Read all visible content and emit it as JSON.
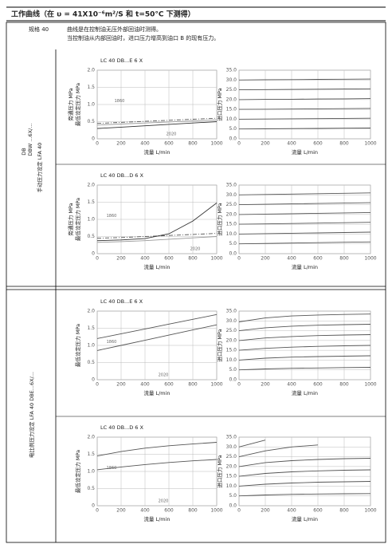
{
  "header": {
    "title": "工作曲线（在 υ = 41X10⁻⁶m²/S 和 t=50°C 下测得）",
    "spec": "规格 40",
    "notes": [
      "曲线是在控制油无压外部回油时测得。",
      "当控制油从内部回油时，进口压力增高到油口 B 的现有压力。"
    ]
  },
  "sections": [
    {
      "side_labels": [
        "手动压力设定 LFA 40",
        "DB",
        "DBW ...6X/..."
      ]
    },
    {
      "side_labels": [
        "电比例压力设定 LFA 40 DBE...6X/..."
      ]
    }
  ],
  "chart_data": [
    {
      "type": "line",
      "title": "LC 40 DB...E 6 X",
      "ylabels": [
        "旁通压力 MPa",
        "最低设定压力 MPa"
      ],
      "xlabel": "流量 L/min",
      "annotations": [
        "1860",
        "2020"
      ],
      "grid": true,
      "x": [
        0,
        200,
        400,
        600,
        800,
        1000
      ],
      "xlim": [
        0,
        1000
      ],
      "xticks": [
        0,
        200,
        400,
        600,
        800,
        1000
      ],
      "ylim": [
        0,
        2
      ],
      "yticks": [
        0,
        0.5,
        {
          "value": 1,
          "label": "1.0"
        },
        1.5,
        {
          "value": 2,
          "label": "2.0"
        }
      ],
      "series": [
        {
          "color": "#555",
          "style": "dashdot",
          "values": [
            0.45,
            0.48,
            0.51,
            0.54,
            0.57,
            0.6
          ]
        },
        {
          "color": "#999",
          "style": "solid",
          "values": [
            0.4,
            0.43,
            0.46,
            0.49,
            0.52,
            0.55
          ]
        },
        {
          "color": "#333",
          "style": "solid",
          "values": [
            0.3,
            0.34,
            0.38,
            0.42,
            0.46,
            0.5
          ]
        }
      ]
    },
    {
      "type": "line",
      "ylabels": [
        "进口压力 MPa"
      ],
      "xlabel": "流量 L/min",
      "grid": true,
      "x": [
        0,
        200,
        400,
        600,
        800,
        1000
      ],
      "xlim": [
        0,
        1000
      ],
      "xticks": [
        0,
        200,
        400,
        600,
        800,
        1000
      ],
      "ylim": [
        0,
        35
      ],
      "yticks": [
        {
          "value": 0,
          "label": "0.0"
        },
        {
          "value": 5,
          "label": "5.0"
        },
        {
          "value": 10,
          "label": "10.0"
        },
        {
          "value": 15,
          "label": "15.0"
        },
        {
          "value": 20,
          "label": "20.0"
        },
        {
          "value": 25,
          "label": "25.0"
        },
        {
          "value": 30,
          "label": "30.0"
        },
        {
          "value": 35,
          "label": "35.0"
        }
      ],
      "series": [
        {
          "color": "#555",
          "style": "solid",
          "values": [
            5,
            5.1,
            5.2,
            5.3,
            5.4,
            5.5
          ]
        },
        {
          "color": "#555",
          "style": "solid",
          "values": [
            10,
            10.1,
            10.2,
            10.3,
            10.4,
            10.5
          ]
        },
        {
          "color": "#555",
          "style": "solid",
          "values": [
            15,
            15.1,
            15.2,
            15.3,
            15.4,
            15.5
          ]
        },
        {
          "color": "#555",
          "style": "solid",
          "values": [
            20,
            20.1,
            20.2,
            20.3,
            20.4,
            20.5
          ]
        },
        {
          "color": "#555",
          "style": "solid",
          "values": [
            25,
            25.1,
            25.2,
            25.3,
            25.4,
            25.5
          ]
        },
        {
          "color": "#555",
          "style": "solid",
          "values": [
            30,
            30.1,
            30.2,
            30.3,
            30.4,
            30.5
          ]
        }
      ]
    },
    {
      "type": "line",
      "title": "LC 40 DB...D 6 X",
      "ylabels": [
        "旁通压力 MPa",
        "最低设定压力 MPa"
      ],
      "xlabel": "流量 L/min",
      "annotations": [
        "1860",
        "2020"
      ],
      "grid": true,
      "x": [
        0,
        200,
        400,
        600,
        800,
        1000
      ],
      "xlim": [
        0,
        1000
      ],
      "xticks": [
        0,
        200,
        400,
        600,
        800,
        1000
      ],
      "ylim": [
        0,
        2
      ],
      "yticks": [
        0,
        0.5,
        {
          "value": 1,
          "label": "1.0"
        },
        1.5,
        {
          "value": 2,
          "label": "2.0"
        }
      ],
      "series": [
        {
          "color": "#555",
          "style": "dashdot",
          "values": [
            0.45,
            0.47,
            0.5,
            0.53,
            0.56,
            0.59
          ]
        },
        {
          "color": "#333",
          "style": "solid",
          "values": [
            0.38,
            0.4,
            0.44,
            0.58,
            0.95,
            1.48
          ]
        },
        {
          "color": "#999",
          "style": "solid",
          "values": [
            0.33,
            0.35,
            0.38,
            0.42,
            0.46,
            0.5
          ]
        }
      ]
    },
    {
      "type": "line",
      "ylabels": [
        "进口压力 MPa"
      ],
      "xlabel": "流量 L/min",
      "grid": true,
      "x": [
        0,
        200,
        400,
        600,
        800,
        1000
      ],
      "xlim": [
        0,
        1000
      ],
      "xticks": [
        0,
        200,
        400,
        600,
        800,
        1000
      ],
      "ylim": [
        0,
        35
      ],
      "yticks": [
        {
          "value": 0,
          "label": "0.0"
        },
        {
          "value": 5,
          "label": "5.0"
        },
        {
          "value": 10,
          "label": "10.0"
        },
        {
          "value": 15,
          "label": "15.0"
        },
        {
          "value": 20,
          "label": "20.0"
        },
        {
          "value": 25,
          "label": "25.0"
        },
        {
          "value": 30,
          "label": "30.0"
        },
        {
          "value": 35,
          "label": "35.0"
        }
      ],
      "series": [
        {
          "color": "#555",
          "style": "solid",
          "values": [
            5,
            5.2,
            5.4,
            5.6,
            5.8,
            6
          ]
        },
        {
          "color": "#555",
          "style": "solid",
          "values": [
            10,
            10.2,
            10.4,
            10.6,
            10.8,
            11
          ]
        },
        {
          "color": "#555",
          "style": "solid",
          "values": [
            15,
            15.2,
            15.4,
            15.6,
            15.8,
            16
          ]
        },
        {
          "color": "#555",
          "style": "solid",
          "values": [
            20,
            20.2,
            20.4,
            20.6,
            20.8,
            21
          ]
        },
        {
          "color": "#555",
          "style": "solid",
          "values": [
            25,
            25.2,
            25.4,
            25.6,
            25.8,
            26
          ]
        },
        {
          "color": "#555",
          "style": "solid",
          "values": [
            30,
            30.2,
            30.4,
            30.6,
            30.8,
            31
          ]
        }
      ]
    },
    {
      "type": "line",
      "title": "LC 40 DB...E 6 X",
      "ylabels": [
        "最低设定压力 MPa"
      ],
      "xlabel": "流量 L/min",
      "annotations": [
        "1860",
        "2020"
      ],
      "grid": true,
      "x": [
        0,
        200,
        400,
        600,
        800,
        1000
      ],
      "xlim": [
        0,
        1000
      ],
      "xticks": [
        0,
        200,
        400,
        600,
        800,
        1000
      ],
      "ylim": [
        0,
        2
      ],
      "yticks": [
        0,
        0.5,
        {
          "value": 1,
          "label": "1.0"
        },
        1.5,
        {
          "value": 2,
          "label": "2.0"
        }
      ],
      "series": [
        {
          "color": "#555",
          "style": "solid",
          "values": [
            1.2,
            1.34,
            1.48,
            1.62,
            1.76,
            1.9
          ]
        },
        {
          "color": "#555",
          "style": "solid",
          "values": [
            0.85,
            1,
            1.15,
            1.3,
            1.45,
            1.6
          ]
        }
      ]
    },
    {
      "type": "line",
      "ylabels": [
        "进口压力 MPa"
      ],
      "xlabel": "流量 L/min",
      "grid": true,
      "x": [
        0,
        200,
        400,
        600,
        800,
        1000
      ],
      "xlim": [
        0,
        1000
      ],
      "xticks": [
        0,
        200,
        400,
        600,
        800,
        1000
      ],
      "ylim": [
        0,
        35
      ],
      "yticks": [
        {
          "value": 0,
          "label": "0.0"
        },
        {
          "value": 5,
          "label": "5.0"
        },
        {
          "value": 10,
          "label": "10.0"
        },
        {
          "value": 15,
          "label": "15.0"
        },
        {
          "value": 20,
          "label": "20.0"
        },
        {
          "value": 25,
          "label": "25.0"
        },
        {
          "value": 30,
          "label": "30.0"
        },
        {
          "value": 35,
          "label": "35.0"
        }
      ],
      "series": [
        {
          "color": "#555",
          "style": "solid",
          "values": [
            5,
            5.5,
            5.8,
            6,
            6.2,
            6.3
          ]
        },
        {
          "color": "#555",
          "style": "solid",
          "values": [
            10,
            11,
            11.5,
            11.8,
            12,
            12.2
          ]
        },
        {
          "color": "#555",
          "style": "solid",
          "values": [
            15,
            16,
            16.6,
            17,
            17.3,
            17.5
          ]
        },
        {
          "color": "#555",
          "style": "solid",
          "values": [
            20,
            21.3,
            22,
            22.5,
            22.8,
            23
          ]
        },
        {
          "color": "#555",
          "style": "solid",
          "values": [
            25,
            26.5,
            27.3,
            27.8,
            28.1,
            28.3
          ]
        },
        {
          "color": "#555",
          "style": "solid",
          "values": [
            29.5,
            31.5,
            32.5,
            33,
            33.3,
            33.5
          ]
        }
      ]
    },
    {
      "type": "line",
      "title": "LC 40 DB...D 6 X",
      "ylabels": [
        "最低设定压力 MPa"
      ],
      "xlabel": "流量 L/min",
      "annotations": [
        "1860",
        "2020"
      ],
      "grid": true,
      "x": [
        0,
        200,
        400,
        600,
        800,
        1000
      ],
      "xlim": [
        0,
        1000
      ],
      "xticks": [
        0,
        200,
        400,
        600,
        800,
        1000
      ],
      "ylim": [
        0,
        2
      ],
      "yticks": [
        0,
        0.5,
        {
          "value": 1,
          "label": "1.0"
        },
        1.5,
        {
          "value": 2,
          "label": "2.0"
        }
      ],
      "series": [
        {
          "color": "#555",
          "style": "solid",
          "values": [
            1.45,
            1.58,
            1.68,
            1.75,
            1.8,
            1.85
          ]
        },
        {
          "color": "#555",
          "style": "solid",
          "values": [
            1.05,
            1.13,
            1.2,
            1.26,
            1.31,
            1.35
          ]
        }
      ]
    },
    {
      "type": "line",
      "ylabels": [
        "进口压力 MPa"
      ],
      "xlabel": "流量 L/min",
      "grid": true,
      "x": [
        0,
        200,
        400,
        600,
        800,
        1000
      ],
      "xlim": [
        0,
        1000
      ],
      "xticks": [
        0,
        200,
        400,
        600,
        800,
        1000
      ],
      "ylim": [
        0,
        35
      ],
      "yticks": [
        {
          "value": 0,
          "label": "0.0"
        },
        {
          "value": 5,
          "label": "5.0"
        },
        {
          "value": 10,
          "label": "10.0"
        },
        {
          "value": 15,
          "label": "15.0"
        },
        {
          "value": 20,
          "label": "20.0"
        },
        {
          "value": 25,
          "label": "25.0"
        },
        {
          "value": 30,
          "label": "30.0"
        },
        {
          "value": 35,
          "label": "35.0"
        }
      ],
      "series": [
        {
          "color": "#555",
          "style": "solid",
          "values": [
            5,
            5.5,
            5.8,
            6,
            6.1,
            6.2
          ]
        },
        {
          "color": "#555",
          "style": "solid",
          "values": [
            10,
            11,
            11.6,
            12,
            12.2,
            12.4
          ]
        },
        {
          "color": "#555",
          "style": "solid",
          "values": [
            15,
            16.5,
            17.3,
            17.8,
            18.1,
            18.3
          ]
        },
        {
          "color": "#555",
          "style": "solid",
          "values": [
            20,
            22,
            23,
            23.6,
            24,
            24.2
          ]
        },
        {
          "color": "#555",
          "style": "solid",
          "values": [
            25,
            28,
            30,
            31,
            null,
            null
          ]
        },
        {
          "color": "#555",
          "style": "solid",
          "values": [
            30,
            33.5,
            null,
            null,
            null,
            null
          ]
        }
      ]
    }
  ]
}
